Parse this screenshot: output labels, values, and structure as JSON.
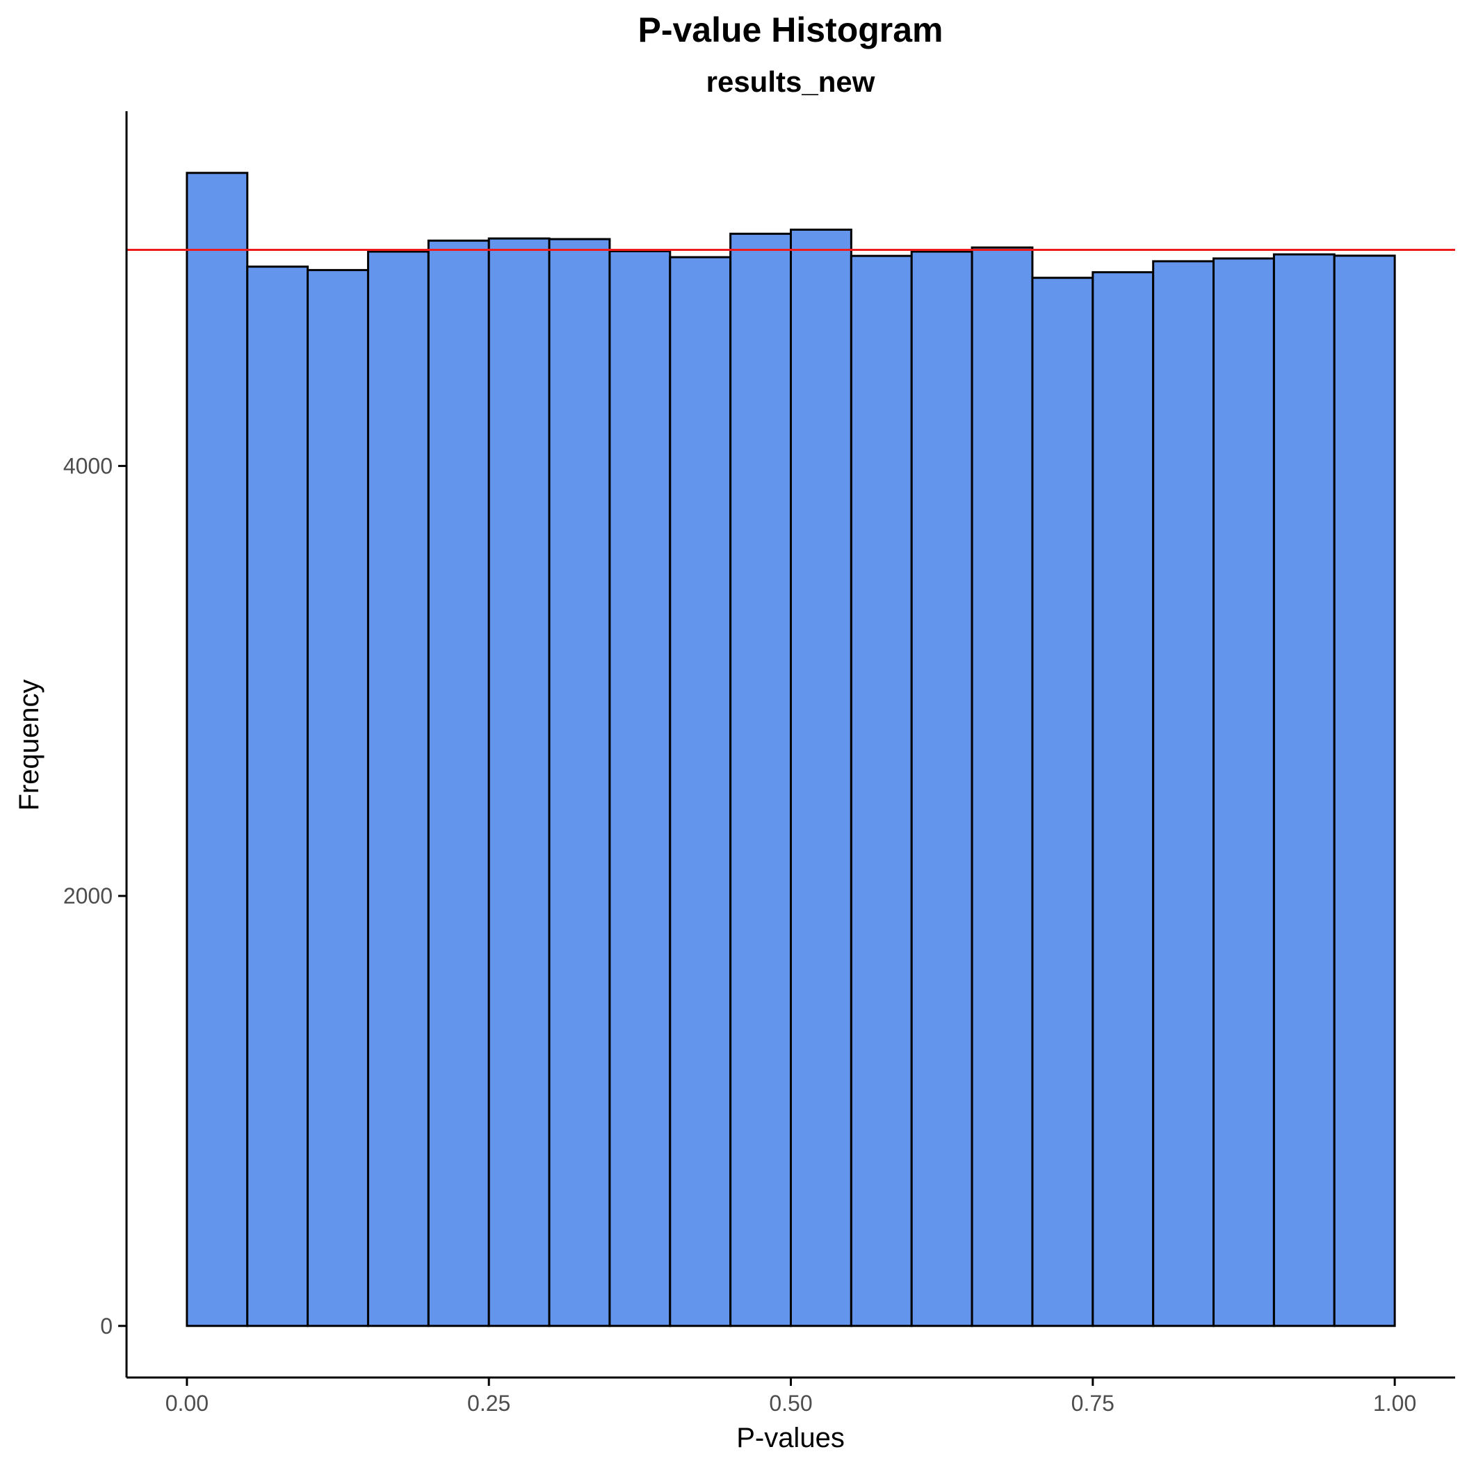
{
  "chart_data": {
    "type": "bar",
    "title": "P-value Histogram",
    "subtitle": "results_new",
    "xlabel": "P-values",
    "ylabel": "Frequency",
    "bins": [
      {
        "x0": 0.0,
        "x1": 0.05,
        "value": 5363
      },
      {
        "x0": 0.05,
        "x1": 0.1,
        "value": 4927
      },
      {
        "x0": 0.1,
        "x1": 0.15,
        "value": 4911
      },
      {
        "x0": 0.15,
        "x1": 0.2,
        "value": 4997
      },
      {
        "x0": 0.2,
        "x1": 0.25,
        "value": 5048
      },
      {
        "x0": 0.25,
        "x1": 0.3,
        "value": 5058
      },
      {
        "x0": 0.3,
        "x1": 0.35,
        "value": 5055
      },
      {
        "x0": 0.35,
        "x1": 0.4,
        "value": 4999
      },
      {
        "x0": 0.4,
        "x1": 0.45,
        "value": 4971
      },
      {
        "x0": 0.45,
        "x1": 0.5,
        "value": 5080
      },
      {
        "x0": 0.5,
        "x1": 0.55,
        "value": 5099
      },
      {
        "x0": 0.55,
        "x1": 0.6,
        "value": 4977
      },
      {
        "x0": 0.6,
        "x1": 0.65,
        "value": 4997
      },
      {
        "x0": 0.65,
        "x1": 0.7,
        "value": 5016
      },
      {
        "x0": 0.7,
        "x1": 0.75,
        "value": 4875
      },
      {
        "x0": 0.75,
        "x1": 0.8,
        "value": 4901
      },
      {
        "x0": 0.8,
        "x1": 0.85,
        "value": 4952
      },
      {
        "x0": 0.85,
        "x1": 0.9,
        "value": 4965
      },
      {
        "x0": 0.9,
        "x1": 0.95,
        "value": 4984
      },
      {
        "x0": 0.95,
        "x1": 1.0,
        "value": 4978
      }
    ],
    "reference_line": {
      "value": 5005,
      "color": "#ee1c1c"
    },
    "xlim": [
      -0.05,
      1.05
    ],
    "ylim": [
      -240,
      5650
    ],
    "xticks": [
      0,
      0.25,
      0.5,
      0.75,
      1
    ],
    "xtick_labels": [
      "0.00",
      "0.25",
      "0.50",
      "0.75",
      "1.00"
    ],
    "yticks": [
      0,
      2000,
      4000
    ],
    "ytick_labels": [
      "0",
      "2000",
      "4000"
    ],
    "grid": false,
    "colors": {
      "bar_fill": "#6495ed",
      "bar_stroke": "#000000",
      "axis": "#000000",
      "tick_label": "#4d4d4d",
      "text": "#000000"
    }
  }
}
